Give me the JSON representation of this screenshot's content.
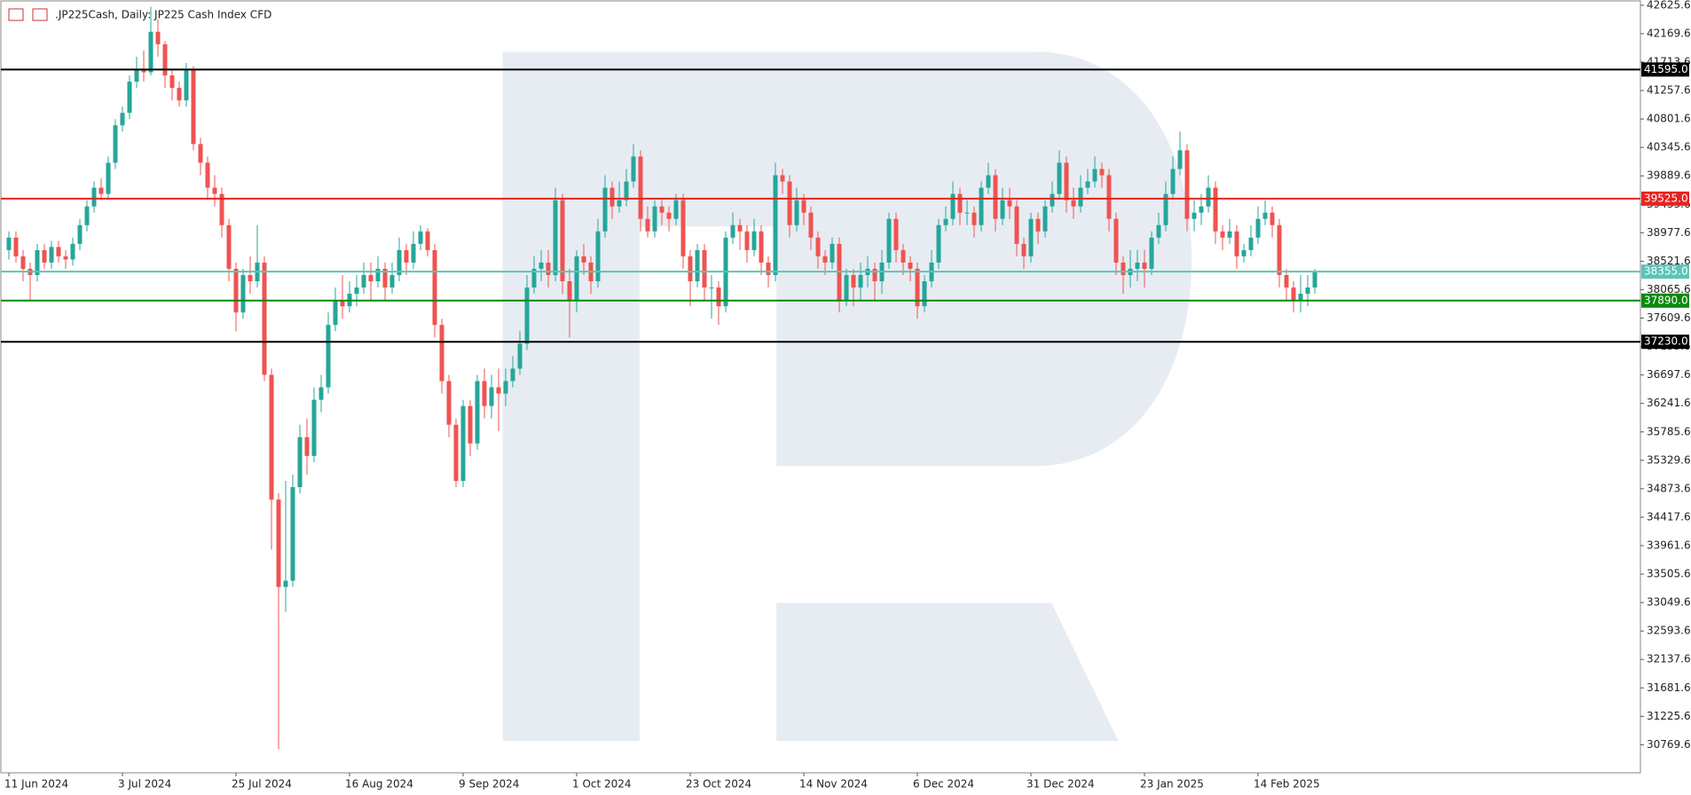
{
  "chart_data": {
    "type": "candlestick",
    "title": ".JP225Cash, Daily:  JP225 Cash Index CFD",
    "up_color": "#26a69a",
    "down_color": "#ef5350",
    "ylim": [
      30320,
      42695
    ],
    "yticks": [
      42625.6,
      42169.6,
      41713.6,
      41257.6,
      40801.6,
      40345.6,
      39889.6,
      39433.6,
      38977.6,
      38521.6,
      38065.6,
      37609.6,
      37153.6,
      36697.6,
      36241.6,
      35785.6,
      35329.6,
      34873.6,
      34417.6,
      33961.6,
      33505.6,
      33049.6,
      32593.6,
      32137.6,
      31681.6,
      31225.6,
      30769.6
    ],
    "xticks": [
      {
        "value": 0,
        "label": "11 Jun 2024"
      },
      {
        "value": 16,
        "label": "3 Jul 2024"
      },
      {
        "value": 32,
        "label": "25 Jul 2024"
      },
      {
        "value": 48,
        "label": "16 Aug 2024"
      },
      {
        "value": 64,
        "label": "9 Sep 2024"
      },
      {
        "value": 80,
        "label": "1 Oct 2024"
      },
      {
        "value": 96,
        "label": "23 Oct 2024"
      },
      {
        "value": 112,
        "label": "14 Nov 2024"
      },
      {
        "value": 128,
        "label": "6 Dec 2024"
      },
      {
        "value": 144,
        "label": "31 Dec 2024"
      },
      {
        "value": 160,
        "label": "23 Jan 2025"
      },
      {
        "value": 176,
        "label": "14 Feb 2025"
      }
    ],
    "levels": [
      {
        "value": 41595,
        "label": "41595.0",
        "color": "#000000"
      },
      {
        "value": 39525,
        "label": "39525.0",
        "color": "#e8231f"
      },
      {
        "value": 38355,
        "label": "38355.0",
        "color": "#5cc4b8"
      },
      {
        "value": 37890,
        "label": "37890.0",
        "color": "#0a8a0a"
      },
      {
        "value": 37230,
        "label": "37230.0",
        "color": "#000000"
      }
    ],
    "ohlc": [
      [
        38700,
        39000,
        38550,
        38900
      ],
      [
        38900,
        39000,
        38500,
        38600
      ],
      [
        38600,
        38700,
        38200,
        38400
      ],
      [
        38400,
        38500,
        37900,
        38300
      ],
      [
        38300,
        38800,
        38200,
        38700
      ],
      [
        38700,
        38800,
        38400,
        38500
      ],
      [
        38500,
        38850,
        38400,
        38750
      ],
      [
        38750,
        38850,
        38500,
        38600
      ],
      [
        38600,
        38700,
        38400,
        38550
      ],
      [
        38550,
        38900,
        38450,
        38800
      ],
      [
        38800,
        39200,
        38700,
        39100
      ],
      [
        39100,
        39500,
        39000,
        39400
      ],
      [
        39400,
        39800,
        39300,
        39700
      ],
      [
        39700,
        39850,
        39500,
        39600
      ],
      [
        39600,
        40200,
        39500,
        40100
      ],
      [
        40100,
        40800,
        40000,
        40700
      ],
      [
        40700,
        41000,
        40600,
        40900
      ],
      [
        40900,
        41500,
        40800,
        41400
      ],
      [
        41400,
        41800,
        41300,
        41600
      ],
      [
        41600,
        41900,
        41400,
        41550
      ],
      [
        41550,
        42600,
        41500,
        42200
      ],
      [
        42200,
        42400,
        41800,
        42000
      ],
      [
        42000,
        42050,
        41300,
        41500
      ],
      [
        41500,
        41600,
        41100,
        41300
      ],
      [
        41300,
        41400,
        41000,
        41100
      ],
      [
        41100,
        41700,
        41000,
        41600
      ],
      [
        41600,
        41650,
        40300,
        40400
      ],
      [
        40400,
        40500,
        39900,
        40100
      ],
      [
        40100,
        40200,
        39500,
        39700
      ],
      [
        39700,
        39900,
        39400,
        39600
      ],
      [
        39600,
        39700,
        38900,
        39100
      ],
      [
        39100,
        39200,
        38200,
        38400
      ],
      [
        38400,
        38500,
        37400,
        37700
      ],
      [
        37700,
        38400,
        37600,
        38300
      ],
      [
        38300,
        38600,
        38000,
        38200
      ],
      [
        38200,
        39100,
        38100,
        38500
      ],
      [
        38500,
        38600,
        36600,
        36700
      ],
      [
        36700,
        36800,
        33900,
        34700
      ],
      [
        34700,
        34800,
        30700,
        33300
      ],
      [
        33300,
        35000,
        32900,
        33400
      ],
      [
        33400,
        35100,
        33300,
        34900
      ],
      [
        34900,
        35900,
        34800,
        35700
      ],
      [
        35700,
        36000,
        35100,
        35400
      ],
      [
        35400,
        36500,
        35300,
        36300
      ],
      [
        36300,
        36700,
        36100,
        36500
      ],
      [
        36500,
        37700,
        36400,
        37500
      ],
      [
        37500,
        38100,
        37400,
        37900
      ],
      [
        37900,
        38300,
        37600,
        37800
      ],
      [
        37800,
        38200,
        37700,
        38000
      ],
      [
        38000,
        38300,
        37800,
        38100
      ],
      [
        38100,
        38500,
        38000,
        38300
      ],
      [
        38300,
        38500,
        37900,
        38200
      ],
      [
        38200,
        38600,
        38100,
        38400
      ],
      [
        38400,
        38500,
        37900,
        38100
      ],
      [
        38100,
        38500,
        38000,
        38300
      ],
      [
        38300,
        38900,
        38200,
        38700
      ],
      [
        38700,
        38800,
        38300,
        38500
      ],
      [
        38500,
        39000,
        38400,
        38800
      ],
      [
        38800,
        39100,
        38700,
        39000
      ],
      [
        39000,
        39050,
        38600,
        38700
      ],
      [
        38700,
        38800,
        37300,
        37500
      ],
      [
        37500,
        37600,
        36400,
        36600
      ],
      [
        36600,
        36700,
        35700,
        35900
      ],
      [
        35900,
        36000,
        34900,
        35000
      ],
      [
        35000,
        36300,
        34900,
        36200
      ],
      [
        36200,
        36300,
        35400,
        35600
      ],
      [
        35600,
        36700,
        35500,
        36600
      ],
      [
        36600,
        36800,
        36000,
        36200
      ],
      [
        36200,
        36700,
        36000,
        36500
      ],
      [
        36500,
        36800,
        35800,
        36400
      ],
      [
        36400,
        36800,
        36200,
        36600
      ],
      [
        36600,
        37000,
        36500,
        36800
      ],
      [
        36800,
        37400,
        36700,
        37200
      ],
      [
        37200,
        38300,
        37100,
        38100
      ],
      [
        38100,
        38600,
        38000,
        38400
      ],
      [
        38400,
        38700,
        38200,
        38500
      ],
      [
        38500,
        38700,
        38100,
        38300
      ],
      [
        38300,
        39700,
        38200,
        39500
      ],
      [
        39500,
        39600,
        38000,
        38200
      ],
      [
        38200,
        38400,
        37300,
        37900
      ],
      [
        37900,
        38700,
        37700,
        38600
      ],
      [
        38600,
        38800,
        38300,
        38500
      ],
      [
        38500,
        38600,
        38000,
        38200
      ],
      [
        38200,
        39200,
        38100,
        39000
      ],
      [
        39000,
        39900,
        38900,
        39700
      ],
      [
        39700,
        39800,
        39200,
        39400
      ],
      [
        39400,
        39800,
        39300,
        39500
      ],
      [
        39500,
        40000,
        39400,
        39800
      ],
      [
        39800,
        40400,
        39700,
        40200
      ],
      [
        40200,
        40300,
        39000,
        39200
      ],
      [
        39200,
        39400,
        38900,
        39000
      ],
      [
        39000,
        39500,
        38900,
        39400
      ],
      [
        39400,
        39500,
        39100,
        39300
      ],
      [
        39300,
        39400,
        39000,
        39200
      ],
      [
        39200,
        39600,
        39100,
        39500
      ],
      [
        39500,
        39600,
        38400,
        38600
      ],
      [
        38600,
        38700,
        37800,
        38200
      ],
      [
        38200,
        38800,
        38100,
        38700
      ],
      [
        38700,
        38800,
        37900,
        38100
      ],
      [
        38100,
        38300,
        37600,
        38100
      ],
      [
        38100,
        38200,
        37500,
        37800
      ],
      [
        37800,
        39000,
        37700,
        38900
      ],
      [
        38900,
        39300,
        38800,
        39100
      ],
      [
        39100,
        39200,
        38700,
        39000
      ],
      [
        39000,
        39100,
        38500,
        38700
      ],
      [
        38700,
        39200,
        38600,
        39000
      ],
      [
        39000,
        39100,
        38300,
        38500
      ],
      [
        38500,
        38600,
        38100,
        38300
      ],
      [
        38300,
        40100,
        38200,
        39900
      ],
      [
        39900,
        40000,
        39600,
        39800
      ],
      [
        39800,
        39900,
        38900,
        39100
      ],
      [
        39100,
        39700,
        39000,
        39500
      ],
      [
        39500,
        39600,
        39100,
        39300
      ],
      [
        39300,
        39400,
        38700,
        38900
      ],
      [
        38900,
        39000,
        38400,
        38600
      ],
      [
        38600,
        38700,
        38300,
        38500
      ],
      [
        38500,
        38900,
        38400,
        38800
      ],
      [
        38800,
        38900,
        37700,
        37900
      ],
      [
        37900,
        38400,
        37800,
        38300
      ],
      [
        38300,
        38400,
        37800,
        38100
      ],
      [
        38100,
        38500,
        37900,
        38300
      ],
      [
        38300,
        38600,
        38100,
        38400
      ],
      [
        38400,
        38500,
        37900,
        38200
      ],
      [
        38200,
        38700,
        38000,
        38500
      ],
      [
        38500,
        39300,
        38400,
        39200
      ],
      [
        39200,
        39300,
        38500,
        38700
      ],
      [
        38700,
        38800,
        38300,
        38500
      ],
      [
        38500,
        38600,
        38200,
        38400
      ],
      [
        38400,
        38500,
        37600,
        37800
      ],
      [
        37800,
        38300,
        37700,
        38200
      ],
      [
        38200,
        38700,
        38100,
        38500
      ],
      [
        38500,
        39200,
        38400,
        39100
      ],
      [
        39100,
        39400,
        39000,
        39200
      ],
      [
        39200,
        39800,
        39100,
        39600
      ],
      [
        39600,
        39700,
        39100,
        39300
      ],
      [
        39300,
        39500,
        39100,
        39300
      ],
      [
        39300,
        39400,
        38900,
        39100
      ],
      [
        39100,
        39800,
        39000,
        39700
      ],
      [
        39700,
        40100,
        39600,
        39900
      ],
      [
        39900,
        40000,
        39000,
        39200
      ],
      [
        39200,
        39700,
        39100,
        39500
      ],
      [
        39500,
        39700,
        39200,
        39400
      ],
      [
        39400,
        39500,
        38600,
        38800
      ],
      [
        38800,
        38900,
        38400,
        38600
      ],
      [
        38600,
        39300,
        38500,
        39200
      ],
      [
        39200,
        39300,
        38800,
        39000
      ],
      [
        39000,
        39500,
        38900,
        39400
      ],
      [
        39400,
        39800,
        39300,
        39600
      ],
      [
        39600,
        40300,
        39500,
        40100
      ],
      [
        40100,
        40200,
        39300,
        39500
      ],
      [
        39500,
        39700,
        39200,
        39400
      ],
      [
        39400,
        39900,
        39300,
        39700
      ],
      [
        39700,
        40000,
        39600,
        39800
      ],
      [
        39800,
        40200,
        39700,
        40000
      ],
      [
        40000,
        40100,
        39700,
        39900
      ],
      [
        39900,
        40000,
        39000,
        39200
      ],
      [
        39200,
        39300,
        38300,
        38500
      ],
      [
        38500,
        38600,
        38000,
        38300
      ],
      [
        38300,
        38700,
        38100,
        38400
      ],
      [
        38400,
        38700,
        38200,
        38500
      ],
      [
        38500,
        38700,
        38100,
        38400
      ],
      [
        38400,
        39000,
        38300,
        38900
      ],
      [
        38900,
        39300,
        38800,
        39100
      ],
      [
        39100,
        39800,
        39000,
        39600
      ],
      [
        39600,
        40200,
        39500,
        40000
      ],
      [
        40000,
        40600,
        39900,
        40300
      ],
      [
        40300,
        40400,
        39000,
        39200
      ],
      [
        39200,
        39500,
        39000,
        39300
      ],
      [
        39300,
        39600,
        39100,
        39400
      ],
      [
        39400,
        39900,
        39300,
        39700
      ],
      [
        39700,
        39800,
        38800,
        39000
      ],
      [
        39000,
        39100,
        38700,
        38900
      ],
      [
        38900,
        39200,
        38800,
        39000
      ],
      [
        39000,
        39100,
        38400,
        38600
      ],
      [
        38600,
        38800,
        38500,
        38700
      ],
      [
        38700,
        39100,
        38600,
        38900
      ],
      [
        38900,
        39400,
        38800,
        39200
      ],
      [
        39200,
        39500,
        39100,
        39300
      ],
      [
        39300,
        39400,
        38900,
        39100
      ],
      [
        39100,
        39200,
        38100,
        38300
      ],
      [
        38300,
        38400,
        37900,
        38100
      ],
      [
        38100,
        38200,
        37700,
        37900
      ],
      [
        37900,
        38300,
        37700,
        38000
      ],
      [
        38000,
        38300,
        37800,
        38100
      ],
      [
        38100,
        38400,
        38000,
        38355
      ]
    ]
  }
}
